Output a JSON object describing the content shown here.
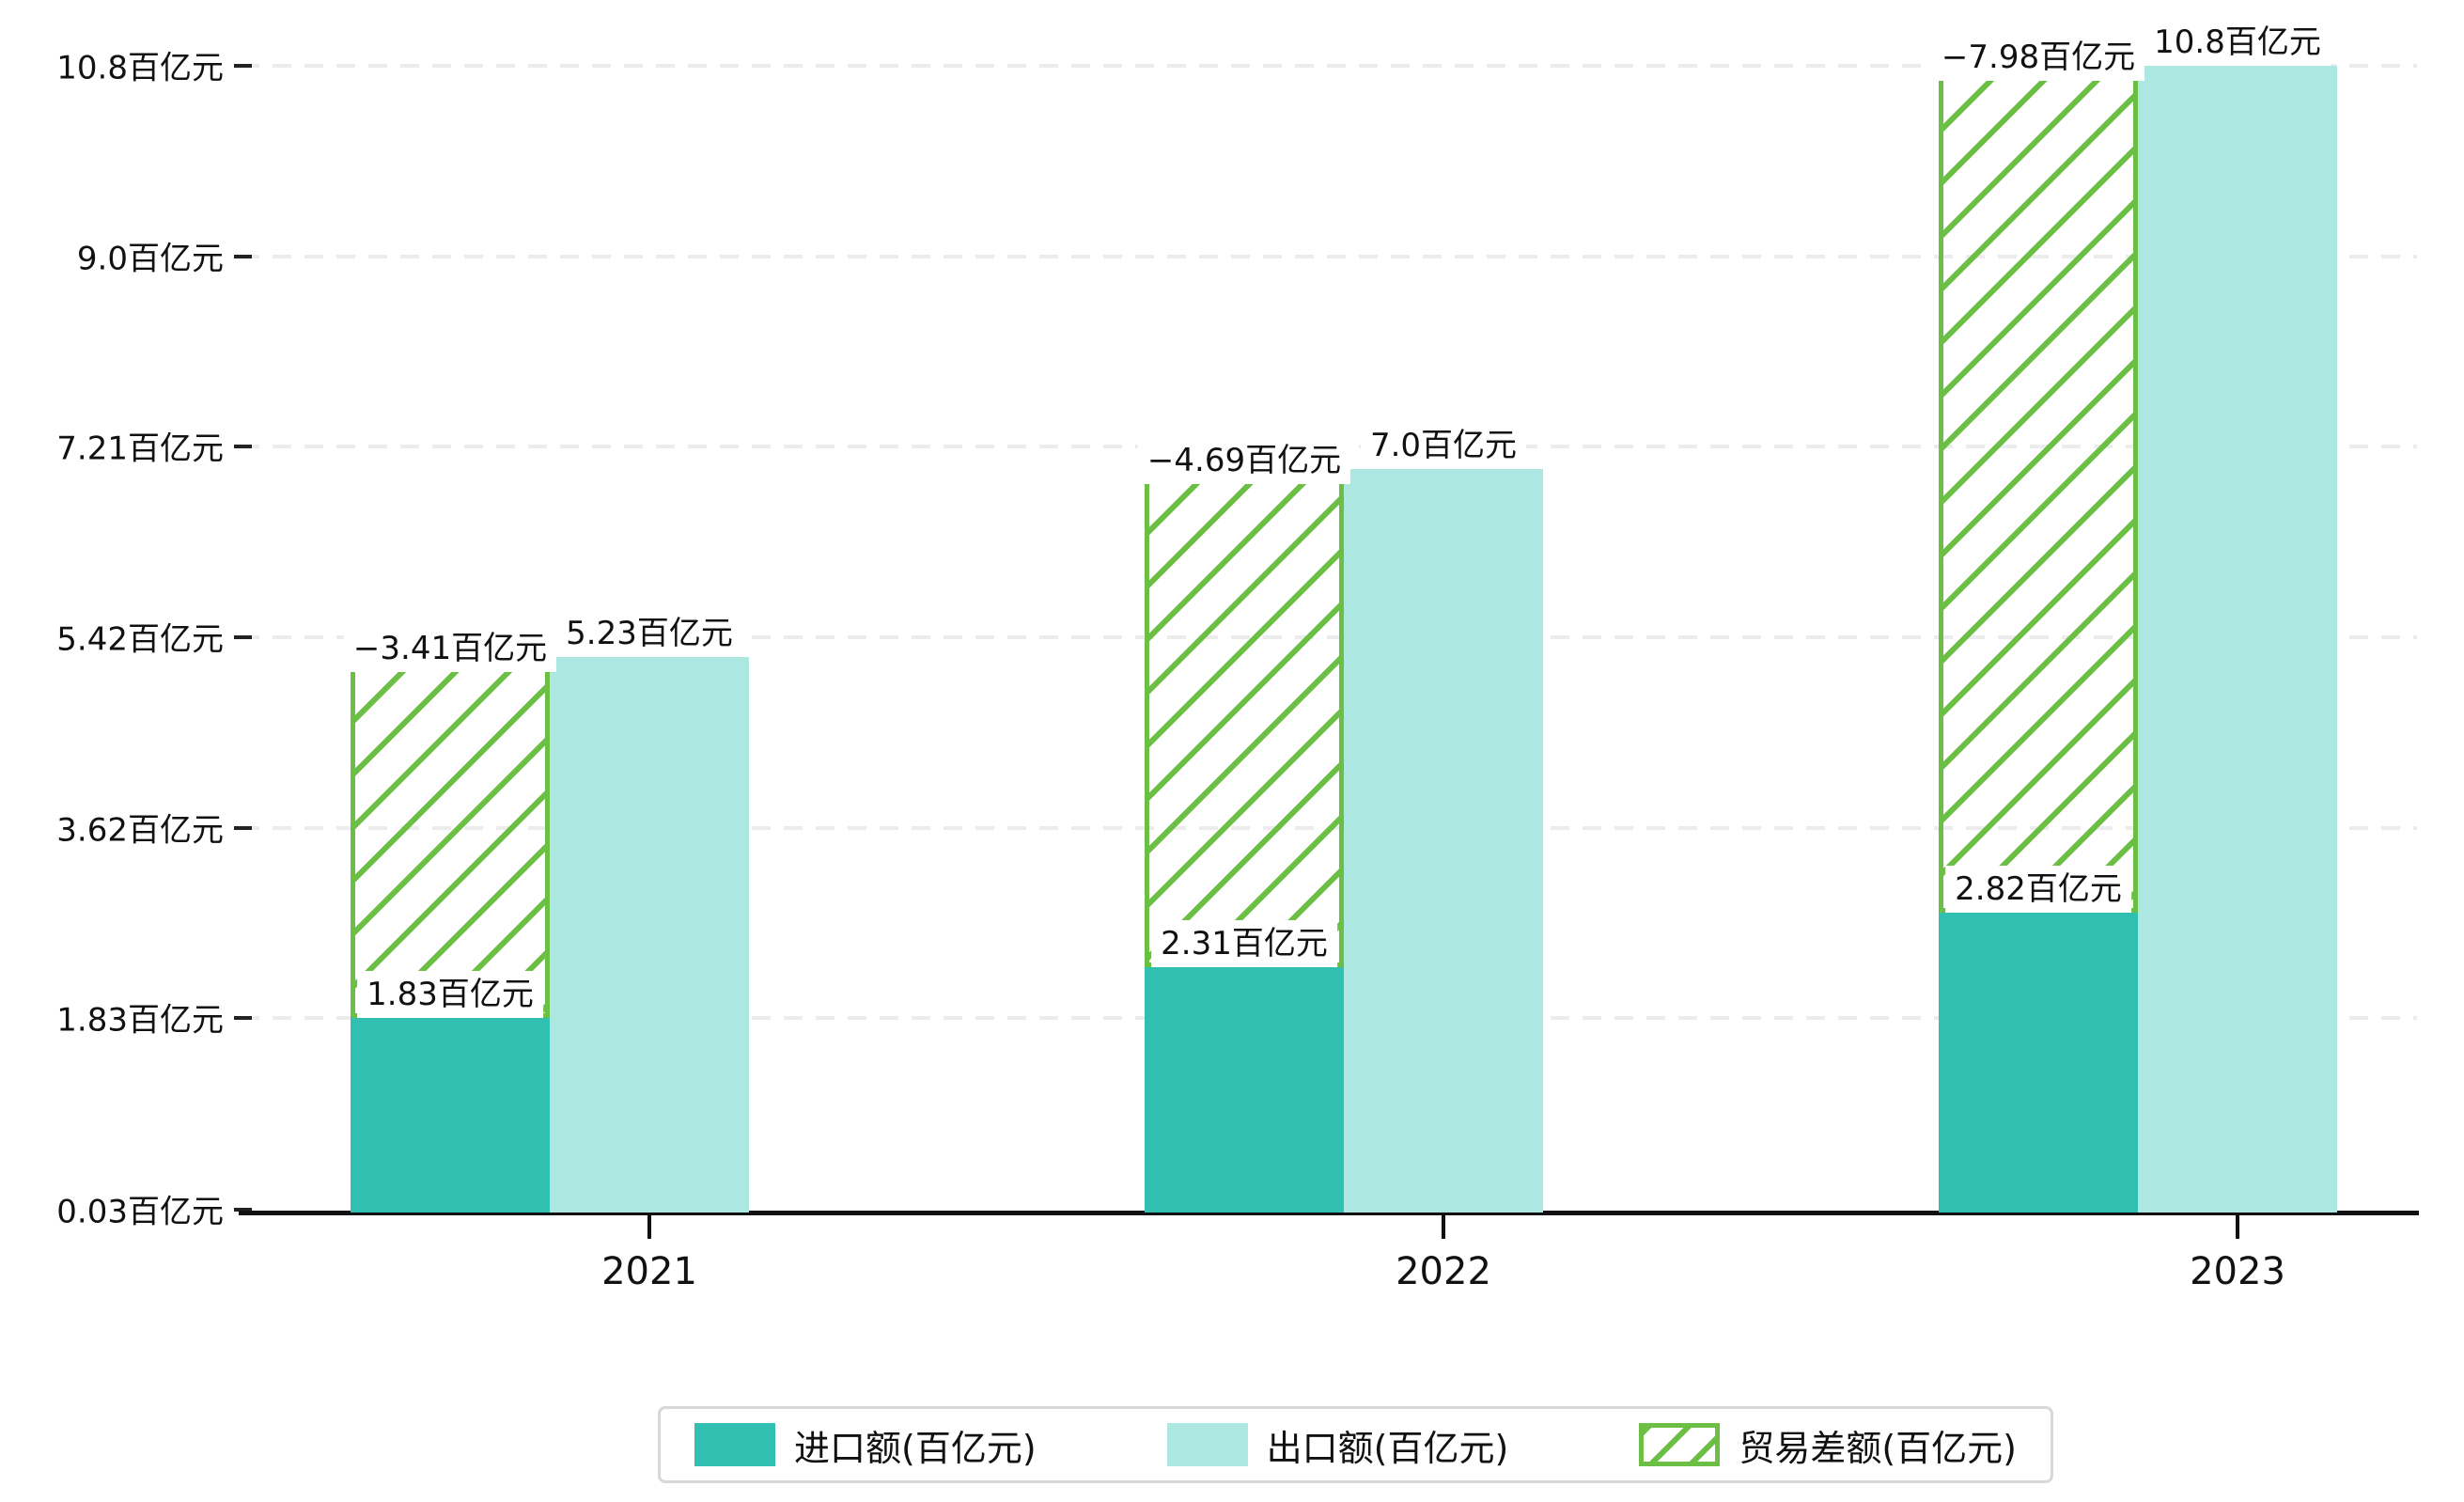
{
  "chart_data": {
    "type": "bar",
    "title": "",
    "xlabel": "",
    "ylabel": "",
    "unit": "百亿元",
    "categories": [
      "2021",
      "2022",
      "2023"
    ],
    "series": [
      {
        "name": "进口额(百亿元)",
        "role": "import",
        "values": [
          1.83,
          2.31,
          2.82
        ],
        "labels": [
          "1.83百亿元",
          "2.31百亿元",
          "2.82百亿元"
        ],
        "color": "#30BFB1",
        "style": "solid"
      },
      {
        "name": "出口额(百亿元)",
        "role": "export",
        "values": [
          5.23,
          7.0,
          10.8
        ],
        "labels": [
          "5.23百亿元",
          "7.0百亿元",
          "10.8百亿元"
        ],
        "color": "#ACE8E1",
        "style": "solid"
      },
      {
        "name": "贸易差额(百亿元)",
        "role": "balance",
        "values": [
          -3.41,
          -4.69,
          -7.98
        ],
        "labels": [
          "−3.41百亿元",
          "−4.69百亿元",
          "−7.98百亿元"
        ],
        "color": "#6CBF45",
        "style": "hatched",
        "note": "drawn as hatched segment spanning from import top to export top"
      }
    ],
    "y_axis": {
      "min": 0,
      "max": 10.8,
      "ticks": [
        {
          "value": 0.03,
          "label": "0.03百亿元"
        },
        {
          "value": 1.83,
          "label": "1.83百亿元"
        },
        {
          "value": 3.62,
          "label": "3.62百亿元"
        },
        {
          "value": 5.42,
          "label": "5.42百亿元"
        },
        {
          "value": 7.21,
          "label": "7.21百亿元"
        },
        {
          "value": 9.0,
          "label": "9.0百亿元"
        },
        {
          "value": 10.8,
          "label": "10.8百亿元"
        }
      ]
    },
    "grid": {
      "show": true,
      "style": "dashed",
      "color": "#ECECEC"
    },
    "legend": {
      "position": "bottom",
      "items": [
        "进口额(百亿元)",
        "出口额(百亿元)",
        "贸易差额(百亿元)"
      ]
    },
    "colors": {
      "import": "#30BFB1",
      "export": "#ACE8E1",
      "balance": "#6CBF45",
      "axis": "#111111",
      "gridline": "#ECECEC",
      "label_background": "#FFFFFF",
      "legend_border": "#D8D8D8"
    }
  }
}
